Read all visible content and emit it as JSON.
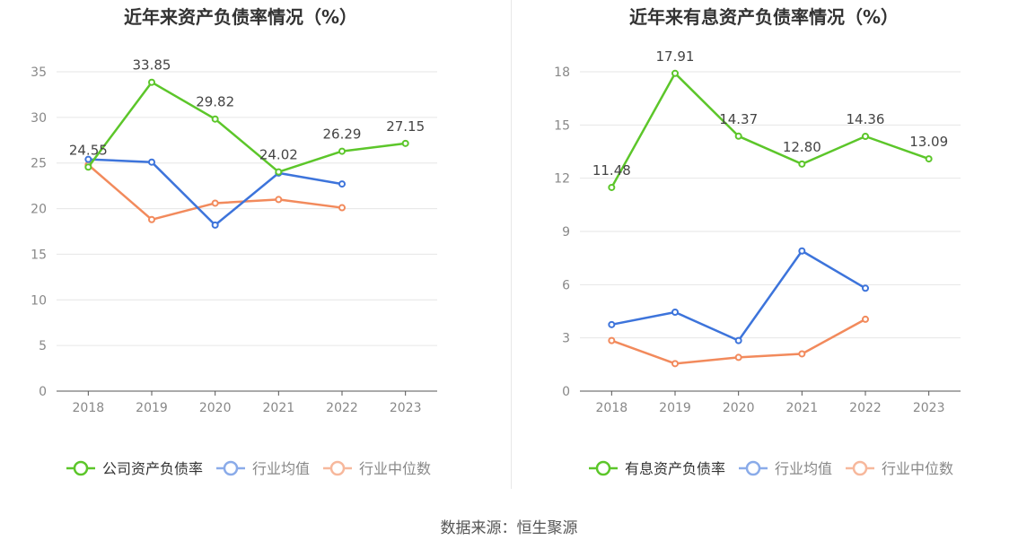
{
  "source": "数据来源：恒生聚源",
  "chart_data": [
    {
      "type": "line",
      "title": "近年来资产负债率情况（%）",
      "x": [
        "2018",
        "2019",
        "2020",
        "2021",
        "2022",
        "2023"
      ],
      "ylim": [
        0,
        35
      ],
      "yticks": [
        0,
        5,
        10,
        15,
        20,
        25,
        30,
        35
      ],
      "grid": true,
      "legend_position": "bottom",
      "series": [
        {
          "name": "公司资产负债率",
          "color": "#5cc62a",
          "values": [
            24.55,
            33.85,
            29.82,
            24.02,
            26.29,
            27.15
          ],
          "labels": [
            "24.55",
            "33.85",
            "29.82",
            "24.02",
            "26.29",
            "27.15"
          ]
        },
        {
          "name": "行业均值",
          "color": "#3d74db",
          "values": [
            25.4,
            25.1,
            18.2,
            23.9,
            22.7,
            null
          ]
        },
        {
          "name": "行业中位数",
          "color": "#f28a5c",
          "values": [
            24.8,
            18.8,
            20.6,
            21.0,
            20.1,
            null
          ]
        }
      ]
    },
    {
      "type": "line",
      "title": "近年来有息资产负债率情况（%）",
      "x": [
        "2018",
        "2019",
        "2020",
        "2021",
        "2022",
        "2023"
      ],
      "ylim": [
        0,
        18
      ],
      "yticks": [
        0,
        3,
        6,
        9,
        12,
        15,
        18
      ],
      "grid": true,
      "legend_position": "bottom",
      "series": [
        {
          "name": "有息资产负债率",
          "color": "#5cc62a",
          "values": [
            11.48,
            17.91,
            14.37,
            12.8,
            14.36,
            13.09
          ],
          "labels": [
            "11.48",
            "17.91",
            "14.37",
            "12.80",
            "14.36",
            "13.09"
          ]
        },
        {
          "name": "行业均值",
          "color": "#3d74db",
          "values": [
            3.75,
            4.45,
            2.85,
            7.9,
            5.8,
            null
          ]
        },
        {
          "name": "行业中位数",
          "color": "#f28a5c",
          "values": [
            2.85,
            1.55,
            1.9,
            2.1,
            4.05,
            null
          ]
        }
      ]
    }
  ]
}
